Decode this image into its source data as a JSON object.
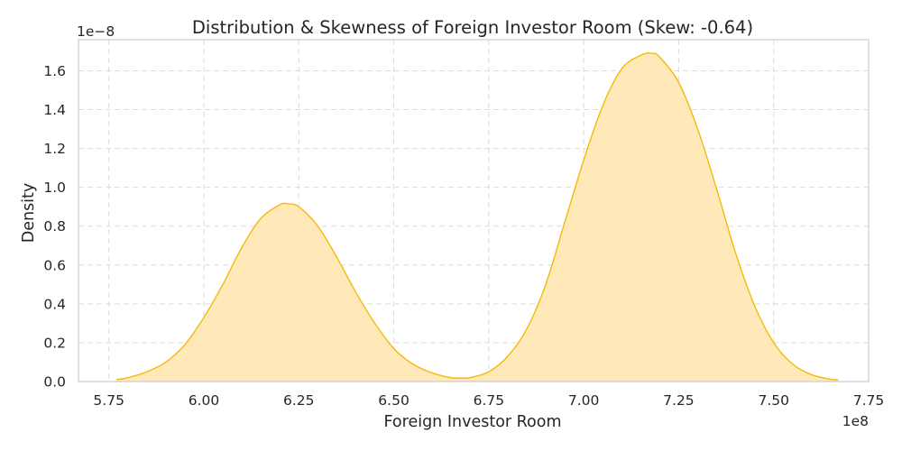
{
  "chart_data": {
    "type": "area",
    "title": "Distribution & Skewness of Foreign Investor Room (Skew: -0.64)",
    "xlabel": "Foreign Investor Room",
    "ylabel": "Density",
    "x_offset_label": "1e8",
    "y_offset_label": "1e−8",
    "xlim": [
      5.67,
      7.75
    ],
    "ylim": [
      0,
      1.76
    ],
    "x_ticks": [
      5.75,
      6.0,
      6.25,
      6.5,
      6.75,
      7.0,
      7.25,
      7.5,
      7.75
    ],
    "x_tick_labels": [
      "5.75",
      "6.00",
      "6.25",
      "6.50",
      "6.75",
      "7.00",
      "7.25",
      "7.50",
      "7.75"
    ],
    "y_ticks": [
      0,
      0.2,
      0.4,
      0.6,
      0.8,
      1.0,
      1.2,
      1.4,
      1.6
    ],
    "y_tick_labels": [
      "0.0",
      "0.2",
      "0.4",
      "0.6",
      "0.8",
      "1.0",
      "1.2",
      "1.4",
      "1.6"
    ],
    "grid": true,
    "color": "#f5b90d",
    "fill_color": "#ffe9b8",
    "series": [
      {
        "x": [
          5.77,
          5.8,
          5.85,
          5.9,
          5.95,
          6.0,
          6.05,
          6.1,
          6.15,
          6.2,
          6.22,
          6.25,
          6.3,
          6.35,
          6.4,
          6.45,
          6.5,
          6.55,
          6.6,
          6.65,
          6.68,
          6.7,
          6.75,
          6.8,
          6.85,
          6.9,
          6.95,
          7.0,
          7.05,
          7.1,
          7.15,
          7.18,
          7.2,
          7.25,
          7.3,
          7.35,
          7.4,
          7.45,
          7.5,
          7.55,
          7.6,
          7.65,
          7.67
        ],
        "y": [
          0.01,
          0.02,
          0.05,
          0.1,
          0.19,
          0.33,
          0.5,
          0.69,
          0.84,
          0.91,
          0.915,
          0.9,
          0.8,
          0.64,
          0.46,
          0.3,
          0.17,
          0.09,
          0.045,
          0.02,
          0.018,
          0.02,
          0.05,
          0.13,
          0.27,
          0.5,
          0.82,
          1.14,
          1.42,
          1.61,
          1.68,
          1.69,
          1.67,
          1.54,
          1.3,
          0.99,
          0.66,
          0.39,
          0.2,
          0.09,
          0.035,
          0.012,
          0.008
        ]
      }
    ]
  }
}
